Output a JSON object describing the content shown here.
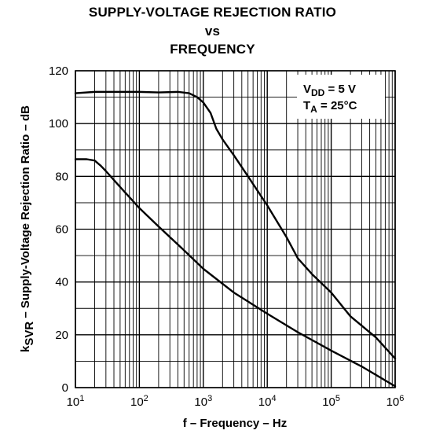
{
  "chart_data": {
    "type": "line",
    "title": [
      "SUPPLY-VOLTAGE REJECTION RATIO",
      "vs",
      "FREQUENCY"
    ],
    "xlabel": "f – Frequency – Hz",
    "ylabel": {
      "prefix": "k",
      "sub": "SVR",
      "rest": " – Supply-Voltage Rejection Ratio – dB"
    },
    "xscale": "log",
    "xlim": [
      10,
      1000000
    ],
    "ylim": [
      0,
      120
    ],
    "grid": true,
    "x_ticks": [
      {
        "base": "10",
        "exp": "1",
        "value": 10
      },
      {
        "base": "10",
        "exp": "2",
        "value": 100
      },
      {
        "base": "10",
        "exp": "3",
        "value": 1000
      },
      {
        "base": "10",
        "exp": "4",
        "value": 10000
      },
      {
        "base": "10",
        "exp": "5",
        "value": 100000
      },
      {
        "base": "10",
        "exp": "6",
        "value": 1000000
      }
    ],
    "y_ticks": [
      {
        "label": "0",
        "value": 0
      },
      {
        "label": "20",
        "value": 20
      },
      {
        "label": "40",
        "value": 40
      },
      {
        "label": "60",
        "value": 60
      },
      {
        "label": "80",
        "value": 80
      },
      {
        "label": "100",
        "value": 100
      },
      {
        "label": "120",
        "value": 120
      }
    ],
    "annotations": [
      {
        "prefix": "V",
        "sub": "DD",
        "rest": " = 5 V"
      },
      {
        "prefix": "T",
        "sub": "A",
        "rest": " = 25°C"
      }
    ],
    "series": [
      {
        "points": [
          [
            10,
            111.5
          ],
          [
            20,
            112
          ],
          [
            50,
            112
          ],
          [
            100,
            112
          ],
          [
            200,
            111.8
          ],
          [
            400,
            112
          ],
          [
            600,
            111.5
          ],
          [
            800,
            110
          ],
          [
            1000,
            108
          ],
          [
            1300,
            104
          ],
          [
            1600,
            98
          ],
          [
            2000,
            94
          ],
          [
            3000,
            88
          ],
          [
            5000,
            80
          ],
          [
            10000,
            69
          ],
          [
            20000,
            57
          ],
          [
            30000,
            49
          ],
          [
            50000,
            43
          ],
          [
            100000,
            36
          ],
          [
            200000,
            27
          ],
          [
            500000,
            19
          ],
          [
            1000000,
            11
          ]
        ]
      },
      {
        "points": [
          [
            10,
            86.5
          ],
          [
            15,
            86.5
          ],
          [
            20,
            86
          ],
          [
            25,
            84
          ],
          [
            30,
            82
          ],
          [
            50,
            76
          ],
          [
            100,
            68
          ],
          [
            200,
            61
          ],
          [
            500,
            52
          ],
          [
            1000,
            45
          ],
          [
            3000,
            36
          ],
          [
            10000,
            28
          ],
          [
            30000,
            21
          ],
          [
            100000,
            14
          ],
          [
            300000,
            8
          ],
          [
            1000000,
            0.5
          ]
        ]
      }
    ]
  }
}
